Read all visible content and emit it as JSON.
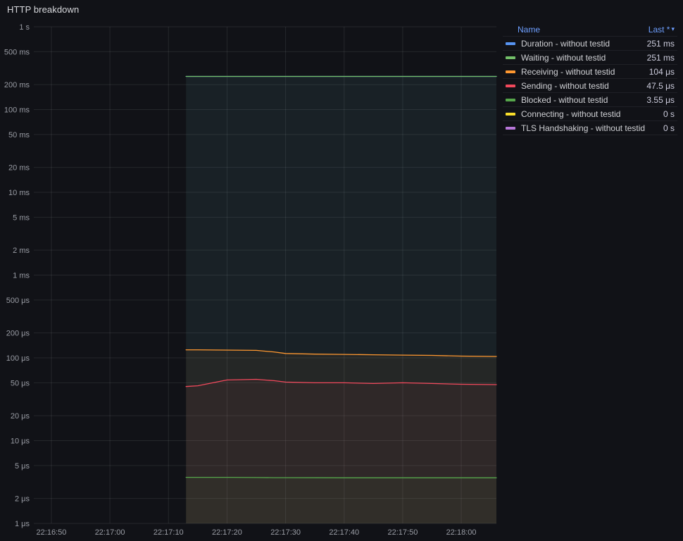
{
  "panel": {
    "title": "HTTP breakdown"
  },
  "legend": {
    "name_header": "Name",
    "last_header": "Last *",
    "sort_icon": "▾"
  },
  "chart_data": {
    "type": "line",
    "title": "HTTP breakdown",
    "y_scale": "log",
    "grid": true,
    "legend_position": "right-table",
    "x_range": [
      "22:16:47",
      "22:18:06"
    ],
    "y_range_us": [
      1,
      1000000
    ],
    "x_ticks": [
      "22:16:50",
      "22:17:00",
      "22:17:10",
      "22:17:20",
      "22:17:30",
      "22:17:40",
      "22:17:50",
      "22:18:00"
    ],
    "y_ticks": [
      {
        "label": "1 s",
        "us": 1000000
      },
      {
        "label": "500 ms",
        "us": 500000
      },
      {
        "label": "200 ms",
        "us": 200000
      },
      {
        "label": "100 ms",
        "us": 100000
      },
      {
        "label": "50 ms",
        "us": 50000
      },
      {
        "label": "20 ms",
        "us": 20000
      },
      {
        "label": "10 ms",
        "us": 10000
      },
      {
        "label": "5 ms",
        "us": 5000
      },
      {
        "label": "2 ms",
        "us": 2000
      },
      {
        "label": "1 ms",
        "us": 1000
      },
      {
        "label": "500 μs",
        "us": 500
      },
      {
        "label": "200 μs",
        "us": 200
      },
      {
        "label": "100 μs",
        "us": 100
      },
      {
        "label": "50 μs",
        "us": 50
      },
      {
        "label": "20 μs",
        "us": 20
      },
      {
        "label": "10 μs",
        "us": 10
      },
      {
        "label": "5 μs",
        "us": 5
      },
      {
        "label": "2 μs",
        "us": 2
      },
      {
        "label": "1 μs",
        "us": 1
      }
    ],
    "x": [
      "22:17:13",
      "22:17:15",
      "22:17:20",
      "22:17:25",
      "22:17:28",
      "22:17:30",
      "22:17:35",
      "22:17:40",
      "22:17:45",
      "22:17:50",
      "22:17:55",
      "22:18:00",
      "22:18:06"
    ],
    "series": [
      {
        "name": "Duration - without testid",
        "color": "#5794F2",
        "last": "251 ms",
        "values_us": [
          251000,
          251000,
          251000,
          251000,
          251000,
          251000,
          251000,
          251000,
          251000,
          251000,
          251000,
          251000,
          251000
        ]
      },
      {
        "name": "Waiting - without testid",
        "color": "#73BF69",
        "last": "251 ms",
        "values_us": [
          251000,
          251000,
          251000,
          251000,
          251000,
          251000,
          251000,
          251000,
          251000,
          251000,
          251000,
          251000,
          251000
        ]
      },
      {
        "name": "Receiving - without testid",
        "color": "#FF9830",
        "last": "104 μs",
        "values_us": [
          125,
          125,
          124,
          123,
          118,
          113,
          111,
          110,
          109,
          108,
          107,
          105,
          104
        ]
      },
      {
        "name": "Sending - without testid",
        "color": "#F2495C",
        "last": "47.5 μs",
        "values_us": [
          45,
          46,
          54,
          55,
          53,
          51,
          50,
          50,
          49,
          50,
          49,
          48,
          47.5
        ]
      },
      {
        "name": "Blocked - without testid",
        "color": "#56A64B",
        "last": "3.55 μs",
        "values_us": [
          3.6,
          3.6,
          3.6,
          3.58,
          3.57,
          3.57,
          3.56,
          3.55,
          3.55,
          3.55,
          3.55,
          3.55,
          3.55
        ]
      },
      {
        "name": "Connecting - without testid",
        "color": "#FADE2A",
        "last": "0 s",
        "values_us": [
          0,
          0,
          0,
          0,
          0,
          0,
          0,
          0,
          0,
          0,
          0,
          0,
          0
        ]
      },
      {
        "name": "TLS Handshaking - without testid",
        "color": "#B877D9",
        "last": "0 s",
        "values_us": [
          0,
          0,
          0,
          0,
          0,
          0,
          0,
          0,
          0,
          0,
          0,
          0,
          0
        ]
      }
    ]
  }
}
